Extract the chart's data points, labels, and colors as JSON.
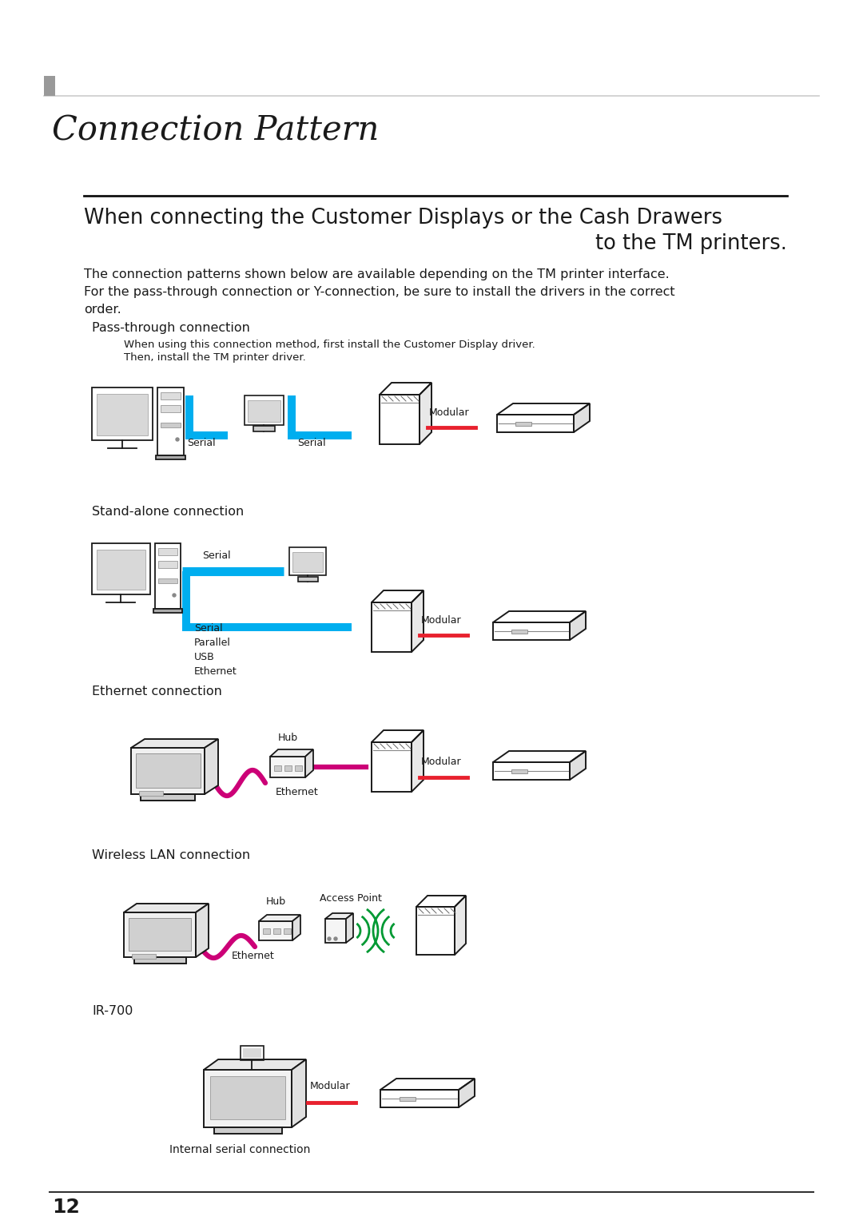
{
  "title": "Connection Pattern",
  "subtitle1": "When connecting the Customer Displays or the Cash Drawers",
  "subtitle2": "to the TM printers.",
  "body1": "The connection patterns shown below are available depending on the TM printer interface.",
  "body2": "For the pass-through connection or Y-connection, be sure to install the drivers in the correct",
  "body3": "order.",
  "s1_title": "Pass-through connection",
  "s1_note1": "When using this connection method, first install the Customer Display driver.",
  "s1_note2": "Then, install the TM printer driver.",
  "s2_title": "Stand-alone connection",
  "s3_title": "Ethernet connection",
  "s4_title": "Wireless LAN connection",
  "s5_title": "IR-700",
  "s5_sub": "Internal serial connection",
  "lbl_serial": "Serial",
  "lbl_modular": "Modular",
  "lbl_hub": "Hub",
  "lbl_ethernet": "Ethernet",
  "lbl_access": "Access Point",
  "lbl_parallel": "Parallel",
  "lbl_usb": "USB",
  "page_num": "12",
  "bg": "#ffffff",
  "blue": "#00aeef",
  "red": "#e8212e",
  "magenta": "#cc0077",
  "green": "#009933",
  "ink": "#1a1a1a",
  "lgray": "#aaaaaa",
  "hbar_color": "#999999",
  "hline_color": "#cccccc"
}
